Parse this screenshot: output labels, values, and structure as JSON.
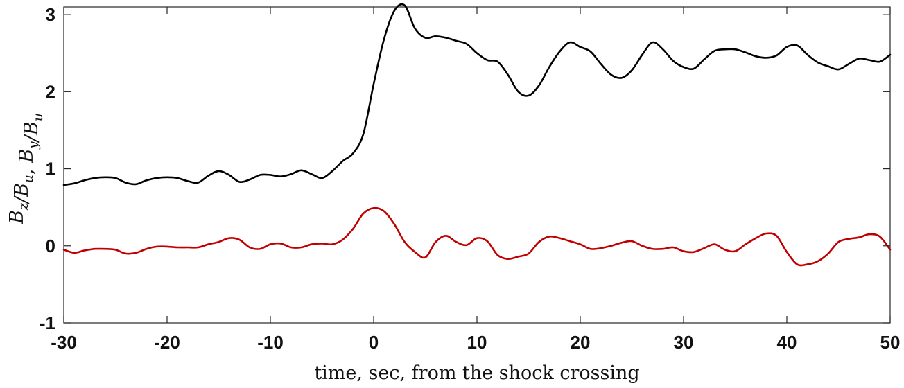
{
  "chart_data": {
    "type": "line",
    "xlabel": "time, sec, from the shock crossing",
    "ylabel": {
      "parts": [
        {
          "text": "B",
          "sub": "z"
        },
        {
          "text": "/B",
          "sub": "u"
        },
        {
          "text": ", "
        },
        {
          "text": "B",
          "sub": "y"
        },
        {
          "text": "/B",
          "sub": "u"
        }
      ]
    },
    "xlim": [
      -30,
      50
    ],
    "ylim": [
      -1,
      3.1
    ],
    "xticks": [
      -30,
      -20,
      -10,
      0,
      10,
      20,
      30,
      40,
      50
    ],
    "xtick_labels": [
      "-30",
      "-20",
      "-10",
      "0",
      "10",
      "20",
      "30",
      "40",
      "50"
    ],
    "yticks": [
      -1,
      0,
      1,
      2,
      3
    ],
    "ytick_labels": [
      "-1",
      "0",
      "1",
      "2",
      "3"
    ],
    "grid": false,
    "series": [
      {
        "color": "#000000",
        "points": [
          [
            -30,
            0.79
          ],
          [
            -29,
            0.81
          ],
          [
            -28,
            0.85
          ],
          [
            -27,
            0.88
          ],
          [
            -26,
            0.89
          ],
          [
            -25,
            0.88
          ],
          [
            -24,
            0.82
          ],
          [
            -23,
            0.8
          ],
          [
            -22,
            0.85
          ],
          [
            -21,
            0.88
          ],
          [
            -20,
            0.89
          ],
          [
            -19,
            0.88
          ],
          [
            -18,
            0.84
          ],
          [
            -17,
            0.82
          ],
          [
            -16,
            0.91
          ],
          [
            -15,
            0.97
          ],
          [
            -14,
            0.92
          ],
          [
            -13,
            0.83
          ],
          [
            -12,
            0.86
          ],
          [
            -11,
            0.92
          ],
          [
            -10,
            0.92
          ],
          [
            -9,
            0.9
          ],
          [
            -8,
            0.93
          ],
          [
            -7,
            0.98
          ],
          [
            -6,
            0.93
          ],
          [
            -5,
            0.88
          ],
          [
            -4,
            0.97
          ],
          [
            -3,
            1.1
          ],
          [
            -2,
            1.2
          ],
          [
            -1,
            1.45
          ],
          [
            0,
            2.1
          ],
          [
            1,
            2.68
          ],
          [
            2,
            3.05
          ],
          [
            3,
            3.12
          ],
          [
            4,
            2.82
          ],
          [
            5,
            2.7
          ],
          [
            6,
            2.72
          ],
          [
            7,
            2.7
          ],
          [
            8,
            2.66
          ],
          [
            9,
            2.62
          ],
          [
            10,
            2.5
          ],
          [
            11,
            2.41
          ],
          [
            12,
            2.39
          ],
          [
            13,
            2.22
          ],
          [
            14,
            2.0
          ],
          [
            15,
            1.95
          ],
          [
            16,
            2.08
          ],
          [
            17,
            2.32
          ],
          [
            18,
            2.52
          ],
          [
            19,
            2.64
          ],
          [
            20,
            2.58
          ],
          [
            21,
            2.52
          ],
          [
            22,
            2.36
          ],
          [
            23,
            2.22
          ],
          [
            24,
            2.18
          ],
          [
            25,
            2.28
          ],
          [
            26,
            2.48
          ],
          [
            27,
            2.64
          ],
          [
            28,
            2.55
          ],
          [
            29,
            2.4
          ],
          [
            30,
            2.32
          ],
          [
            31,
            2.3
          ],
          [
            32,
            2.42
          ],
          [
            33,
            2.53
          ],
          [
            34,
            2.55
          ],
          [
            35,
            2.55
          ],
          [
            36,
            2.51
          ],
          [
            37,
            2.46
          ],
          [
            38,
            2.44
          ],
          [
            39,
            2.47
          ],
          [
            40,
            2.58
          ],
          [
            41,
            2.6
          ],
          [
            42,
            2.48
          ],
          [
            43,
            2.38
          ],
          [
            44,
            2.33
          ],
          [
            45,
            2.29
          ],
          [
            46,
            2.36
          ],
          [
            47,
            2.43
          ],
          [
            48,
            2.41
          ],
          [
            49,
            2.39
          ],
          [
            50,
            2.48
          ]
        ]
      },
      {
        "color": "#c00000",
        "points": [
          [
            -30,
            -0.05
          ],
          [
            -29,
            -0.09
          ],
          [
            -28,
            -0.06
          ],
          [
            -27,
            -0.04
          ],
          [
            -26,
            -0.04
          ],
          [
            -25,
            -0.05
          ],
          [
            -24,
            -0.1
          ],
          [
            -23,
            -0.09
          ],
          [
            -22,
            -0.04
          ],
          [
            -21,
            -0.01
          ],
          [
            -20,
            -0.01
          ],
          [
            -19,
            -0.02
          ],
          [
            -18,
            -0.02
          ],
          [
            -17,
            -0.02
          ],
          [
            -16,
            0.02
          ],
          [
            -15,
            0.05
          ],
          [
            -14,
            0.1
          ],
          [
            -13,
            0.08
          ],
          [
            -12,
            -0.02
          ],
          [
            -11,
            -0.04
          ],
          [
            -10,
            0.02
          ],
          [
            -9,
            0.03
          ],
          [
            -8,
            -0.02
          ],
          [
            -7,
            -0.02
          ],
          [
            -6,
            0.02
          ],
          [
            -5,
            0.03
          ],
          [
            -4,
            0.02
          ],
          [
            -3,
            0.08
          ],
          [
            -2,
            0.22
          ],
          [
            -1,
            0.42
          ],
          [
            0,
            0.49
          ],
          [
            1,
            0.45
          ],
          [
            2,
            0.28
          ],
          [
            3,
            0.05
          ],
          [
            4,
            -0.08
          ],
          [
            5,
            -0.15
          ],
          [
            6,
            0.05
          ],
          [
            7,
            0.13
          ],
          [
            8,
            0.05
          ],
          [
            9,
            0.01
          ],
          [
            10,
            0.1
          ],
          [
            11,
            0.06
          ],
          [
            12,
            -0.12
          ],
          [
            13,
            -0.17
          ],
          [
            14,
            -0.14
          ],
          [
            15,
            -0.1
          ],
          [
            16,
            0.05
          ],
          [
            17,
            0.12
          ],
          [
            18,
            0.1
          ],
          [
            19,
            0.06
          ],
          [
            20,
            0.02
          ],
          [
            21,
            -0.04
          ],
          [
            22,
            -0.03
          ],
          [
            23,
            0.0
          ],
          [
            24,
            0.04
          ],
          [
            25,
            0.06
          ],
          [
            26,
            0.0
          ],
          [
            27,
            -0.04
          ],
          [
            28,
            -0.04
          ],
          [
            29,
            -0.02
          ],
          [
            30,
            -0.07
          ],
          [
            31,
            -0.08
          ],
          [
            32,
            -0.03
          ],
          [
            33,
            0.02
          ],
          [
            34,
            -0.05
          ],
          [
            35,
            -0.07
          ],
          [
            36,
            0.02
          ],
          [
            37,
            0.1
          ],
          [
            38,
            0.16
          ],
          [
            39,
            0.13
          ],
          [
            40,
            -0.08
          ],
          [
            41,
            -0.24
          ],
          [
            42,
            -0.24
          ],
          [
            43,
            -0.2
          ],
          [
            44,
            -0.1
          ],
          [
            45,
            0.05
          ],
          [
            46,
            0.09
          ],
          [
            47,
            0.11
          ],
          [
            48,
            0.15
          ],
          [
            49,
            0.12
          ],
          [
            50,
            -0.05
          ]
        ]
      }
    ]
  }
}
